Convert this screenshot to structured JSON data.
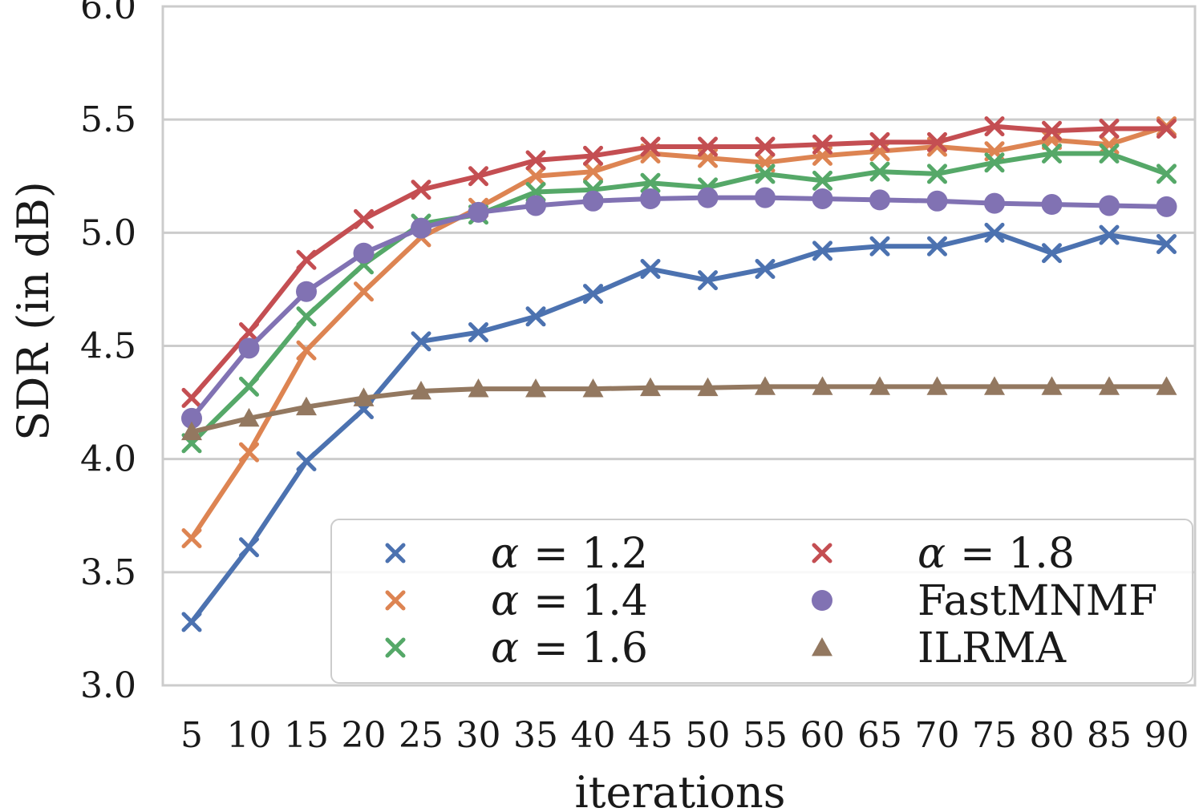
{
  "chart_data": {
    "type": "line",
    "xlabel": "iterations",
    "ylabel": "SDR (in dB)",
    "ylim": [
      3.0,
      6.0
    ],
    "yticks": [
      "3.0",
      "3.5",
      "4.0",
      "4.5",
      "5.0",
      "5.5",
      "6.0"
    ],
    "x": [
      5,
      10,
      15,
      20,
      25,
      30,
      35,
      40,
      45,
      50,
      55,
      60,
      65,
      70,
      75,
      80,
      85,
      90
    ],
    "grid": true,
    "legend_placement": "lower-right",
    "series": [
      {
        "name": "α = 1.2",
        "greek": "α",
        "value_label": "= 1.2",
        "marker": "x",
        "color": "#4c72b0",
        "values": [
          3.28,
          3.61,
          3.99,
          4.22,
          4.52,
          4.56,
          4.63,
          4.73,
          4.84,
          4.79,
          4.84,
          4.92,
          4.94,
          4.94,
          5.0,
          4.91,
          4.99,
          4.95
        ]
      },
      {
        "name": "α = 1.4",
        "greek": "α",
        "value_label": "= 1.4",
        "marker": "x",
        "color": "#dd8452",
        "values": [
          3.65,
          4.03,
          4.48,
          4.74,
          4.98,
          5.11,
          5.25,
          5.27,
          5.35,
          5.33,
          5.31,
          5.34,
          5.36,
          5.38,
          5.36,
          5.41,
          5.39,
          5.47
        ]
      },
      {
        "name": "α = 1.6",
        "greek": "α",
        "value_label": "= 1.6",
        "marker": "x",
        "color": "#55a868",
        "values": [
          4.07,
          4.32,
          4.63,
          4.86,
          5.04,
          5.08,
          5.18,
          5.19,
          5.22,
          5.2,
          5.26,
          5.23,
          5.27,
          5.26,
          5.31,
          5.35,
          5.35,
          5.26
        ]
      },
      {
        "name": "α = 1.8",
        "greek": "α",
        "value_label": "= 1.8",
        "marker": "x",
        "color": "#c44e52",
        "values": [
          4.27,
          4.56,
          4.88,
          5.06,
          5.19,
          5.25,
          5.32,
          5.34,
          5.38,
          5.38,
          5.38,
          5.39,
          5.4,
          5.4,
          5.47,
          5.45,
          5.46,
          5.46
        ]
      },
      {
        "name": "FastMNMF",
        "marker": "o",
        "color": "#8172b3",
        "values": [
          4.18,
          4.49,
          4.74,
          4.91,
          5.02,
          5.09,
          5.12,
          5.14,
          5.15,
          5.155,
          5.155,
          5.15,
          5.145,
          5.14,
          5.13,
          5.125,
          5.12,
          5.115
        ]
      },
      {
        "name": "ILRMA",
        "marker": "^",
        "color": "#937860",
        "values": [
          4.12,
          4.18,
          4.23,
          4.27,
          4.3,
          4.31,
          4.31,
          4.31,
          4.315,
          4.315,
          4.32,
          4.32,
          4.32,
          4.32,
          4.32,
          4.32,
          4.32,
          4.32
        ]
      }
    ]
  }
}
